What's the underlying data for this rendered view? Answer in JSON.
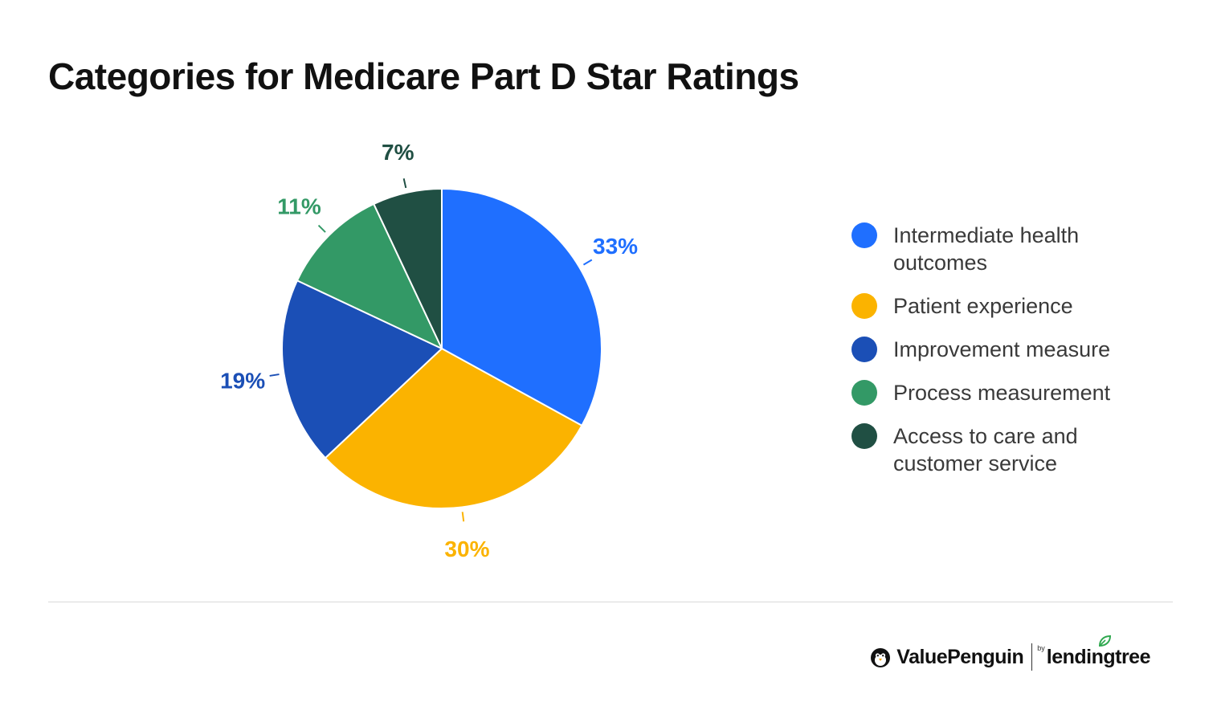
{
  "title": "Categories for Medicare Part D Star Ratings",
  "chart_data": {
    "type": "pie",
    "title": "Categories for Medicare Part D Star Ratings",
    "legend_position": "right",
    "slices": [
      {
        "label": "Intermediate health outcomes",
        "value": 33,
        "display": "33%",
        "color": "#1f6fff"
      },
      {
        "label": "Patient experience",
        "value": 30,
        "display": "30%",
        "color": "#fbb300"
      },
      {
        "label": "Improvement measure",
        "value": 19,
        "display": "19%",
        "color": "#1b4fb6"
      },
      {
        "label": "Process measurement",
        "value": 11,
        "display": "11%",
        "color": "#339966"
      },
      {
        "label": "Access to care and customer service",
        "value": 7,
        "display": "7%",
        "color": "#204f43"
      }
    ]
  },
  "legend": [
    {
      "label": "Intermediate health outcomes",
      "color": "#1f6fff"
    },
    {
      "label": "Patient experience",
      "color": "#fbb300"
    },
    {
      "label": "Improvement measure",
      "color": "#1b4fb6"
    },
    {
      "label": "Process measurement",
      "color": "#339966"
    },
    {
      "label": "Access to care and customer service",
      "color": "#204f43"
    }
  ],
  "footer": {
    "brand": "ValuePenguin",
    "by": "by",
    "partner": "lendingtree",
    "icon": "penguin-icon"
  }
}
